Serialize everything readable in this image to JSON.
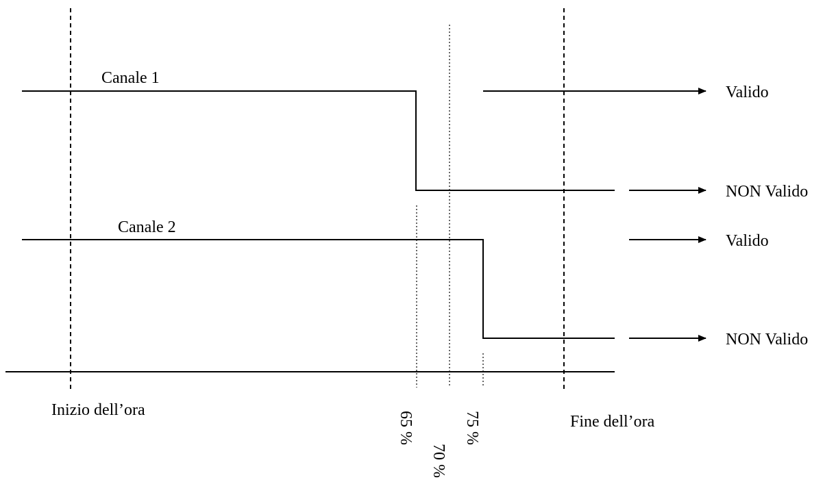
{
  "labels": {
    "channel1": "Canale 1",
    "channel2": "Canale 2",
    "start": "Inizio dell’ora",
    "end": "Fine dell’ora",
    "pct65": "65 %",
    "pct70": "70 %",
    "pct75": "75 %"
  },
  "outputs": [
    {
      "label": "Valido"
    },
    {
      "label": "NON Valido"
    },
    {
      "label": "Valido"
    },
    {
      "label": "NON Valido"
    }
  ]
}
